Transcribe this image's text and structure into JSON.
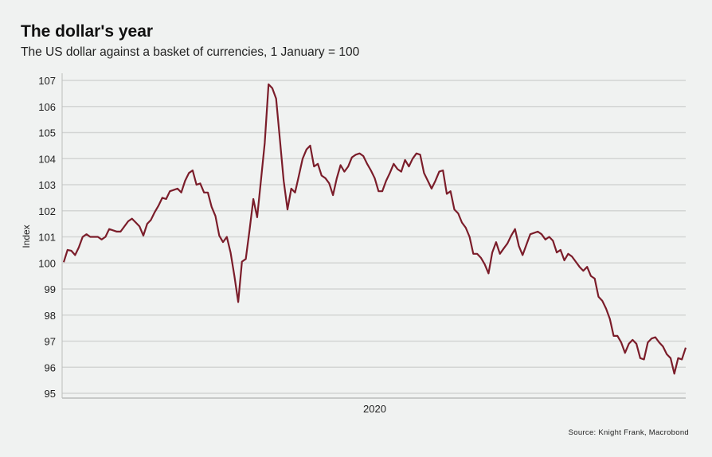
{
  "title": "The dollar's year",
  "subtitle": "The US dollar against a basket of currencies, 1 January = 100",
  "source": "Source: Knight Frank, Macrobond",
  "colors": {
    "background": "#f0f2f1",
    "line": "#7b1d2a",
    "grid": "#d3d5d4"
  },
  "chart_data": {
    "type": "line",
    "title": "The dollar's year",
    "xlabel": "",
    "ylabel": "Index",
    "ylim": [
      95,
      107
    ],
    "yticks": [
      95,
      96,
      97,
      98,
      99,
      100,
      101,
      102,
      103,
      104,
      105,
      106,
      107
    ],
    "xtick_labels": [
      "2020"
    ],
    "grid": "horizontal",
    "legend": "none",
    "series": [
      {
        "values": [
          100.03,
          100.5,
          100.47,
          100.3,
          100.6,
          101.0,
          101.1,
          101.0,
          101.0,
          101.0,
          100.9,
          101.0,
          101.3,
          101.25,
          101.2,
          101.2,
          101.4,
          101.6,
          101.7,
          101.55,
          101.4,
          101.05,
          101.5,
          101.65,
          101.95,
          102.2,
          102.5,
          102.45,
          102.75,
          102.8,
          102.85,
          102.7,
          103.15,
          103.45,
          103.55,
          103.0,
          103.05,
          102.7,
          102.7,
          102.15,
          101.8,
          101.05,
          100.8,
          101.0,
          100.4,
          99.5,
          98.5,
          100.05,
          100.15,
          101.25,
          102.45,
          101.75,
          103.15,
          104.6,
          106.85,
          106.7,
          106.3,
          104.75,
          103.15,
          102.05,
          102.85,
          102.7,
          103.35,
          104.0,
          104.35,
          104.5,
          103.7,
          103.8,
          103.35,
          103.25,
          103.05,
          102.6,
          103.25,
          103.75,
          103.5,
          103.7,
          104.05,
          104.15,
          104.2,
          104.1,
          103.8,
          103.55,
          103.25,
          102.75,
          102.75,
          103.15,
          103.45,
          103.8,
          103.6,
          103.5,
          103.95,
          103.7,
          104.0,
          104.2,
          104.15,
          103.45,
          103.15,
          102.85,
          103.15,
          103.5,
          103.55,
          102.65,
          102.75,
          102.05,
          101.9,
          101.55,
          101.35,
          101.0,
          100.35,
          100.35,
          100.2,
          99.95,
          99.6,
          100.4,
          100.8,
          100.35,
          100.55,
          100.75,
          101.05,
          101.3,
          100.65,
          100.3,
          100.7,
          101.1,
          101.15,
          101.2,
          101.1,
          100.9,
          101.0,
          100.85,
          100.4,
          100.5,
          100.1,
          100.35,
          100.25,
          100.05,
          99.85,
          99.7,
          99.85,
          99.5,
          99.4,
          98.7,
          98.55,
          98.25,
          97.85,
          97.2,
          97.2,
          96.95,
          96.55,
          96.9,
          97.05,
          96.9,
          96.35,
          96.3,
          96.95,
          97.1,
          97.15,
          96.95,
          96.8,
          96.5,
          96.35,
          95.75,
          96.35,
          96.3,
          96.75
        ]
      }
    ]
  }
}
